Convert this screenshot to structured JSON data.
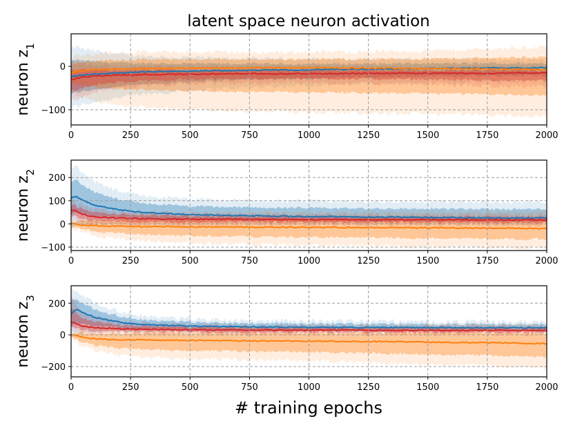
{
  "title": "latent space neuron activation",
  "xlabel": "# training epochs",
  "colors": {
    "blue": "#1f77b4",
    "orange": "#ff7f0e",
    "red": "#d62728",
    "grid": "#9a9a9a"
  },
  "chart_data": [
    {
      "type": "line",
      "ylabel": "neuron z",
      "ylabel_subscript": "1",
      "xlim": [
        0,
        2000
      ],
      "ylim": [
        -135,
        75
      ],
      "xticks": [
        0,
        250,
        500,
        750,
        1000,
        1250,
        1500,
        1750,
        2000
      ],
      "xtick_labels": [
        "0",
        "250",
        "500",
        "750",
        "1000",
        "1250",
        "1500",
        "1750",
        "2000"
      ],
      "yticks": [
        0,
        -100
      ],
      "ytick_labels": [
        "0",
        "−100"
      ],
      "grid": true,
      "series": [
        {
          "name": "blue",
          "color": "blue",
          "x": [
            0,
            20,
            50,
            100,
            200,
            300,
            500,
            750,
            1000,
            1250,
            1500,
            1750,
            2000
          ],
          "mean": [
            -25,
            -22,
            -20,
            -18,
            -15,
            -13,
            -11,
            -9,
            -8,
            -6,
            -5,
            -4,
            -3
          ],
          "lower": [
            -95,
            -92,
            -88,
            -82,
            -72,
            -65,
            -55,
            -48,
            -44,
            -40,
            -38,
            -36,
            -35
          ],
          "upper": [
            40,
            45,
            40,
            35,
            28,
            24,
            20,
            18,
            17,
            16,
            16,
            16,
            15
          ]
        },
        {
          "name": "orange",
          "color": "orange",
          "x": [
            0,
            20,
            50,
            100,
            200,
            300,
            500,
            750,
            1000,
            1250,
            1500,
            1750,
            2000
          ],
          "mean": [
            -15,
            -12,
            -10,
            -8,
            -6,
            -5,
            -4,
            -3,
            -3,
            -4,
            -5,
            -6,
            -7
          ],
          "lower": [
            -60,
            -65,
            -70,
            -80,
            -90,
            -95,
            -100,
            -105,
            -105,
            -108,
            -110,
            -112,
            -115
          ],
          "upper": [
            20,
            25,
            28,
            30,
            32,
            33,
            33,
            32,
            33,
            34,
            36,
            40,
            45
          ]
        },
        {
          "name": "red",
          "color": "red",
          "x": [
            0,
            20,
            50,
            100,
            200,
            300,
            500,
            750,
            1000,
            1250,
            1500,
            1750,
            2000
          ],
          "mean": [
            -30,
            -28,
            -25,
            -22,
            -20,
            -19,
            -18,
            -17,
            -17,
            -16,
            -16,
            -16,
            -15
          ],
          "lower": [
            -80,
            -75,
            -70,
            -60,
            -50,
            -45,
            -40,
            -38,
            -38,
            -40,
            -42,
            -45,
            -48
          ],
          "upper": [
            10,
            8,
            5,
            2,
            0,
            -1,
            -2,
            -2,
            -3,
            -3,
            -4,
            -4,
            -5
          ]
        }
      ]
    },
    {
      "type": "line",
      "ylabel": "neuron z",
      "ylabel_subscript": "2",
      "xlim": [
        0,
        2000
      ],
      "ylim": [
        -115,
        275
      ],
      "xticks": [
        0,
        250,
        500,
        750,
        1000,
        1250,
        1500,
        1750,
        2000
      ],
      "xtick_labels": [
        "0",
        "250",
        "500",
        "750",
        "1000",
        "1250",
        "1500",
        "1750",
        "2000"
      ],
      "yticks": [
        200,
        100,
        0,
        -100
      ],
      "ytick_labels": [
        "200",
        "100",
        "0",
        "−100"
      ],
      "grid": true,
      "series": [
        {
          "name": "blue",
          "color": "blue",
          "x": [
            0,
            20,
            50,
            100,
            200,
            300,
            500,
            750,
            1000,
            1250,
            1500,
            1750,
            2000
          ],
          "mean": [
            110,
            120,
            100,
            80,
            60,
            50,
            40,
            35,
            32,
            30,
            28,
            26,
            25
          ],
          "lower": [
            -20,
            -15,
            -5,
            0,
            0,
            0,
            0,
            0,
            0,
            0,
            0,
            0,
            0
          ],
          "upper": [
            240,
            250,
            220,
            180,
            140,
            120,
            105,
            100,
            98,
            96,
            95,
            95,
            95
          ]
        },
        {
          "name": "orange",
          "color": "orange",
          "x": [
            0,
            20,
            50,
            100,
            200,
            300,
            500,
            750,
            1000,
            1250,
            1500,
            1750,
            2000
          ],
          "mean": [
            0,
            -2,
            -5,
            -8,
            -10,
            -12,
            -13,
            -14,
            -15,
            -16,
            -17,
            -18,
            -20
          ],
          "lower": [
            -20,
            -25,
            -35,
            -50,
            -65,
            -75,
            -82,
            -88,
            -92,
            -95,
            -98,
            -100,
            -105
          ],
          "upper": [
            15,
            20,
            30,
            35,
            40,
            45,
            48,
            50,
            50,
            52,
            53,
            54,
            55
          ]
        },
        {
          "name": "red",
          "color": "red",
          "x": [
            0,
            20,
            50,
            100,
            200,
            300,
            500,
            750,
            1000,
            1250,
            1500,
            1750,
            2000
          ],
          "mean": [
            60,
            55,
            40,
            30,
            25,
            22,
            20,
            20,
            19,
            18,
            18,
            17,
            17
          ],
          "lower": [
            20,
            15,
            5,
            0,
            -2,
            -3,
            -3,
            -3,
            -3,
            -3,
            -3,
            -3,
            -3
          ],
          "upper": [
            100,
            95,
            80,
            65,
            55,
            50,
            45,
            43,
            42,
            41,
            40,
            40,
            40
          ]
        }
      ]
    },
    {
      "type": "line",
      "ylabel": "neuron z",
      "ylabel_subscript": "3",
      "xlim": [
        0,
        2000
      ],
      "ylim": [
        -265,
        310
      ],
      "xticks": [
        0,
        250,
        500,
        750,
        1000,
        1250,
        1500,
        1750,
        2000
      ],
      "xtick_labels": [
        "0",
        "250",
        "500",
        "750",
        "1000",
        "1250",
        "1500",
        "1750",
        "2000"
      ],
      "yticks": [
        200,
        0,
        -200
      ],
      "ytick_labels": [
        "200",
        "0",
        "−200"
      ],
      "grid": true,
      "series": [
        {
          "name": "blue",
          "color": "blue",
          "x": [
            0,
            20,
            50,
            100,
            200,
            300,
            500,
            750,
            1000,
            1250,
            1500,
            1750,
            2000
          ],
          "mean": [
            130,
            160,
            140,
            110,
            80,
            65,
            55,
            50,
            48,
            47,
            46,
            45,
            45
          ],
          "lower": [
            -10,
            0,
            10,
            15,
            15,
            15,
            15,
            15,
            15,
            15,
            15,
            15,
            15
          ],
          "upper": [
            290,
            280,
            250,
            200,
            150,
            120,
            100,
            92,
            90,
            88,
            86,
            85,
            85
          ]
        },
        {
          "name": "orange",
          "color": "orange",
          "x": [
            0,
            20,
            50,
            100,
            200,
            300,
            500,
            750,
            1000,
            1250,
            1500,
            1750,
            2000
          ],
          "mean": [
            0,
            -5,
            -15,
            -25,
            -30,
            -32,
            -35,
            -38,
            -40,
            -42,
            -45,
            -50,
            -55
          ],
          "lower": [
            -20,
            -40,
            -70,
            -100,
            -130,
            -140,
            -150,
            -160,
            -165,
            -175,
            -185,
            -195,
            -210
          ],
          "upper": [
            20,
            25,
            35,
            40,
            45,
            48,
            50,
            52,
            55,
            58,
            60,
            62,
            65
          ]
        },
        {
          "name": "red",
          "color": "red",
          "x": [
            0,
            20,
            50,
            100,
            200,
            300,
            500,
            750,
            1000,
            1250,
            1500,
            1750,
            2000
          ],
          "mean": [
            80,
            70,
            55,
            45,
            38,
            35,
            32,
            30,
            30,
            29,
            28,
            28,
            27
          ],
          "lower": [
            30,
            25,
            15,
            10,
            8,
            7,
            6,
            6,
            5,
            5,
            5,
            5,
            5
          ],
          "upper": [
            240,
            200,
            150,
            110,
            85,
            75,
            65,
            62,
            60,
            58,
            57,
            56,
            55
          ]
        }
      ]
    }
  ]
}
